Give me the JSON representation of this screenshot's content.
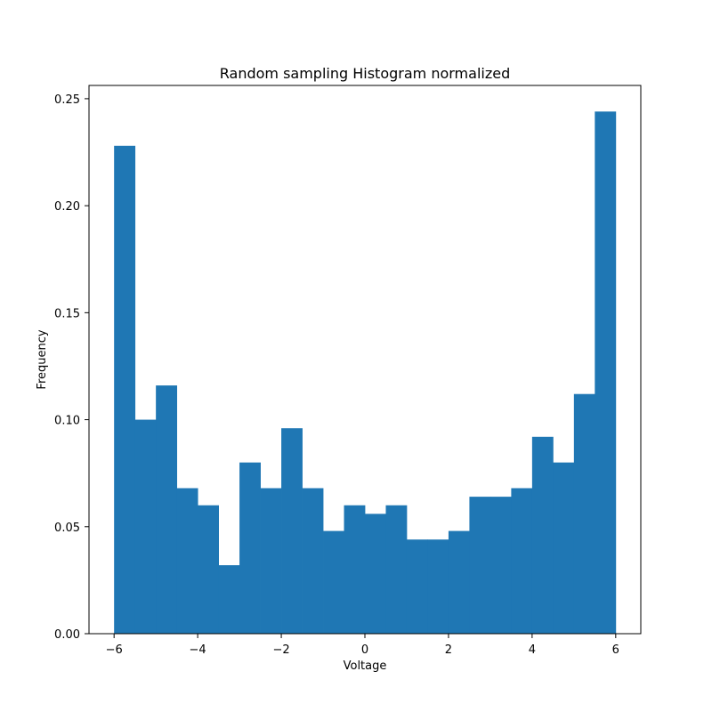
{
  "chart_data": {
    "type": "bar",
    "title": "Random sampling Histogram normalized",
    "xlabel": "Voltage",
    "ylabel": "Frequency",
    "bin_width": 0.5,
    "bin_edges": [
      -6,
      -5.5,
      -5,
      -4.5,
      -4,
      -3.5,
      -3,
      -2.5,
      -2,
      -1.5,
      -1,
      -0.5,
      0,
      0.5,
      1,
      1.5,
      2,
      2.5,
      3,
      3.5,
      4,
      4.5,
      5,
      5.5,
      6
    ],
    "values": [
      0.228,
      0.1,
      0.116,
      0.068,
      0.06,
      0.032,
      0.08,
      0.068,
      0.096,
      0.068,
      0.048,
      0.06,
      0.056,
      0.06,
      0.044,
      0.044,
      0.048,
      0.064,
      0.064,
      0.068,
      0.092,
      0.08,
      0.112,
      0.244
    ],
    "xlim": [
      -6.6,
      6.6
    ],
    "ylim": [
      0,
      0.2562
    ],
    "xticks": [
      -6,
      -4,
      -2,
      0,
      2,
      4,
      6
    ],
    "xtick_labels": [
      "−6",
      "−4",
      "−2",
      "0",
      "2",
      "4",
      "6"
    ],
    "yticks": [
      0,
      0.05,
      0.1,
      0.15,
      0.2,
      0.25
    ],
    "ytick_labels": [
      "0.00",
      "0.05",
      "0.10",
      "0.15",
      "0.20",
      "0.25"
    ],
    "bar_color": "#1f77b4",
    "grid": false,
    "legend": "none"
  }
}
